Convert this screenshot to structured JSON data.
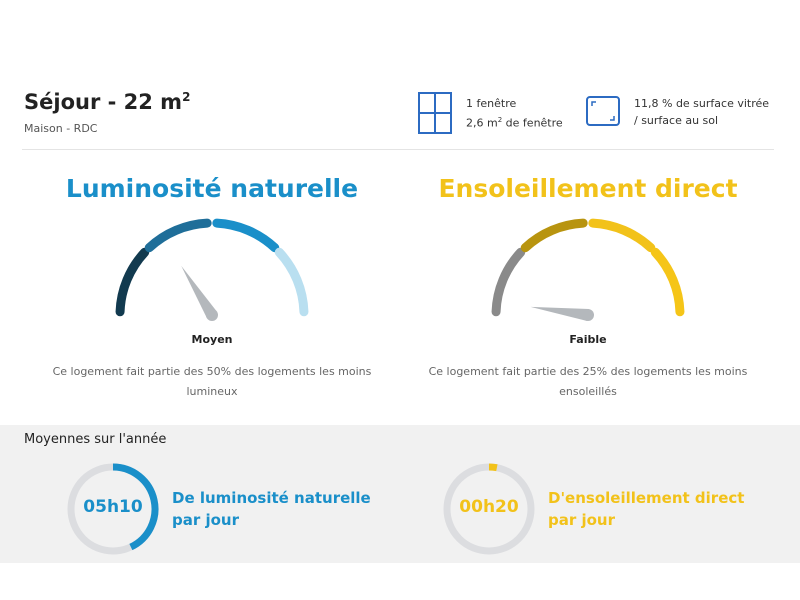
{
  "header": {
    "room": "Séjour - 22 m",
    "room_sup": "2",
    "subtitle": "Maison - RDC",
    "windows_line1": "1 fenêtre",
    "windows_line2_pre": "2,6 m",
    "windows_line2_sup": "2",
    "windows_line2_post": " de fenêtre",
    "glazing_line1": "11,8 % de surface vitrée",
    "glazing_line2": "/ surface au sol"
  },
  "luminosity": {
    "title": "Luminosité naturelle",
    "level": "Moyen",
    "description": "Ce logement fait partie des 50% des logements les moins lumineux",
    "color": "#1a8fc9",
    "segments": [
      "#123a4f",
      "#1f6e99",
      "#1a8fc9",
      "#b9dff0"
    ]
  },
  "sunshine": {
    "title": "Ensoleillement direct",
    "level": "Faible",
    "description": "Ce logement fait partie des 25% des logements les moins ensoleillés",
    "color": "#f2c21a",
    "segments": [
      "#8a8a8a",
      "#b8940f",
      "#f2c21a",
      "#f5c518"
    ]
  },
  "averages": {
    "title": "Moyennes sur l'année",
    "luminosity": {
      "value": "05h10",
      "label1": "De luminosité naturelle",
      "label2": "par jour",
      "fraction": 0.43
    },
    "sunshine": {
      "value": "00h20",
      "label1": "D'ensoleillement direct",
      "label2": "par jour",
      "fraction": 0.03
    }
  }
}
